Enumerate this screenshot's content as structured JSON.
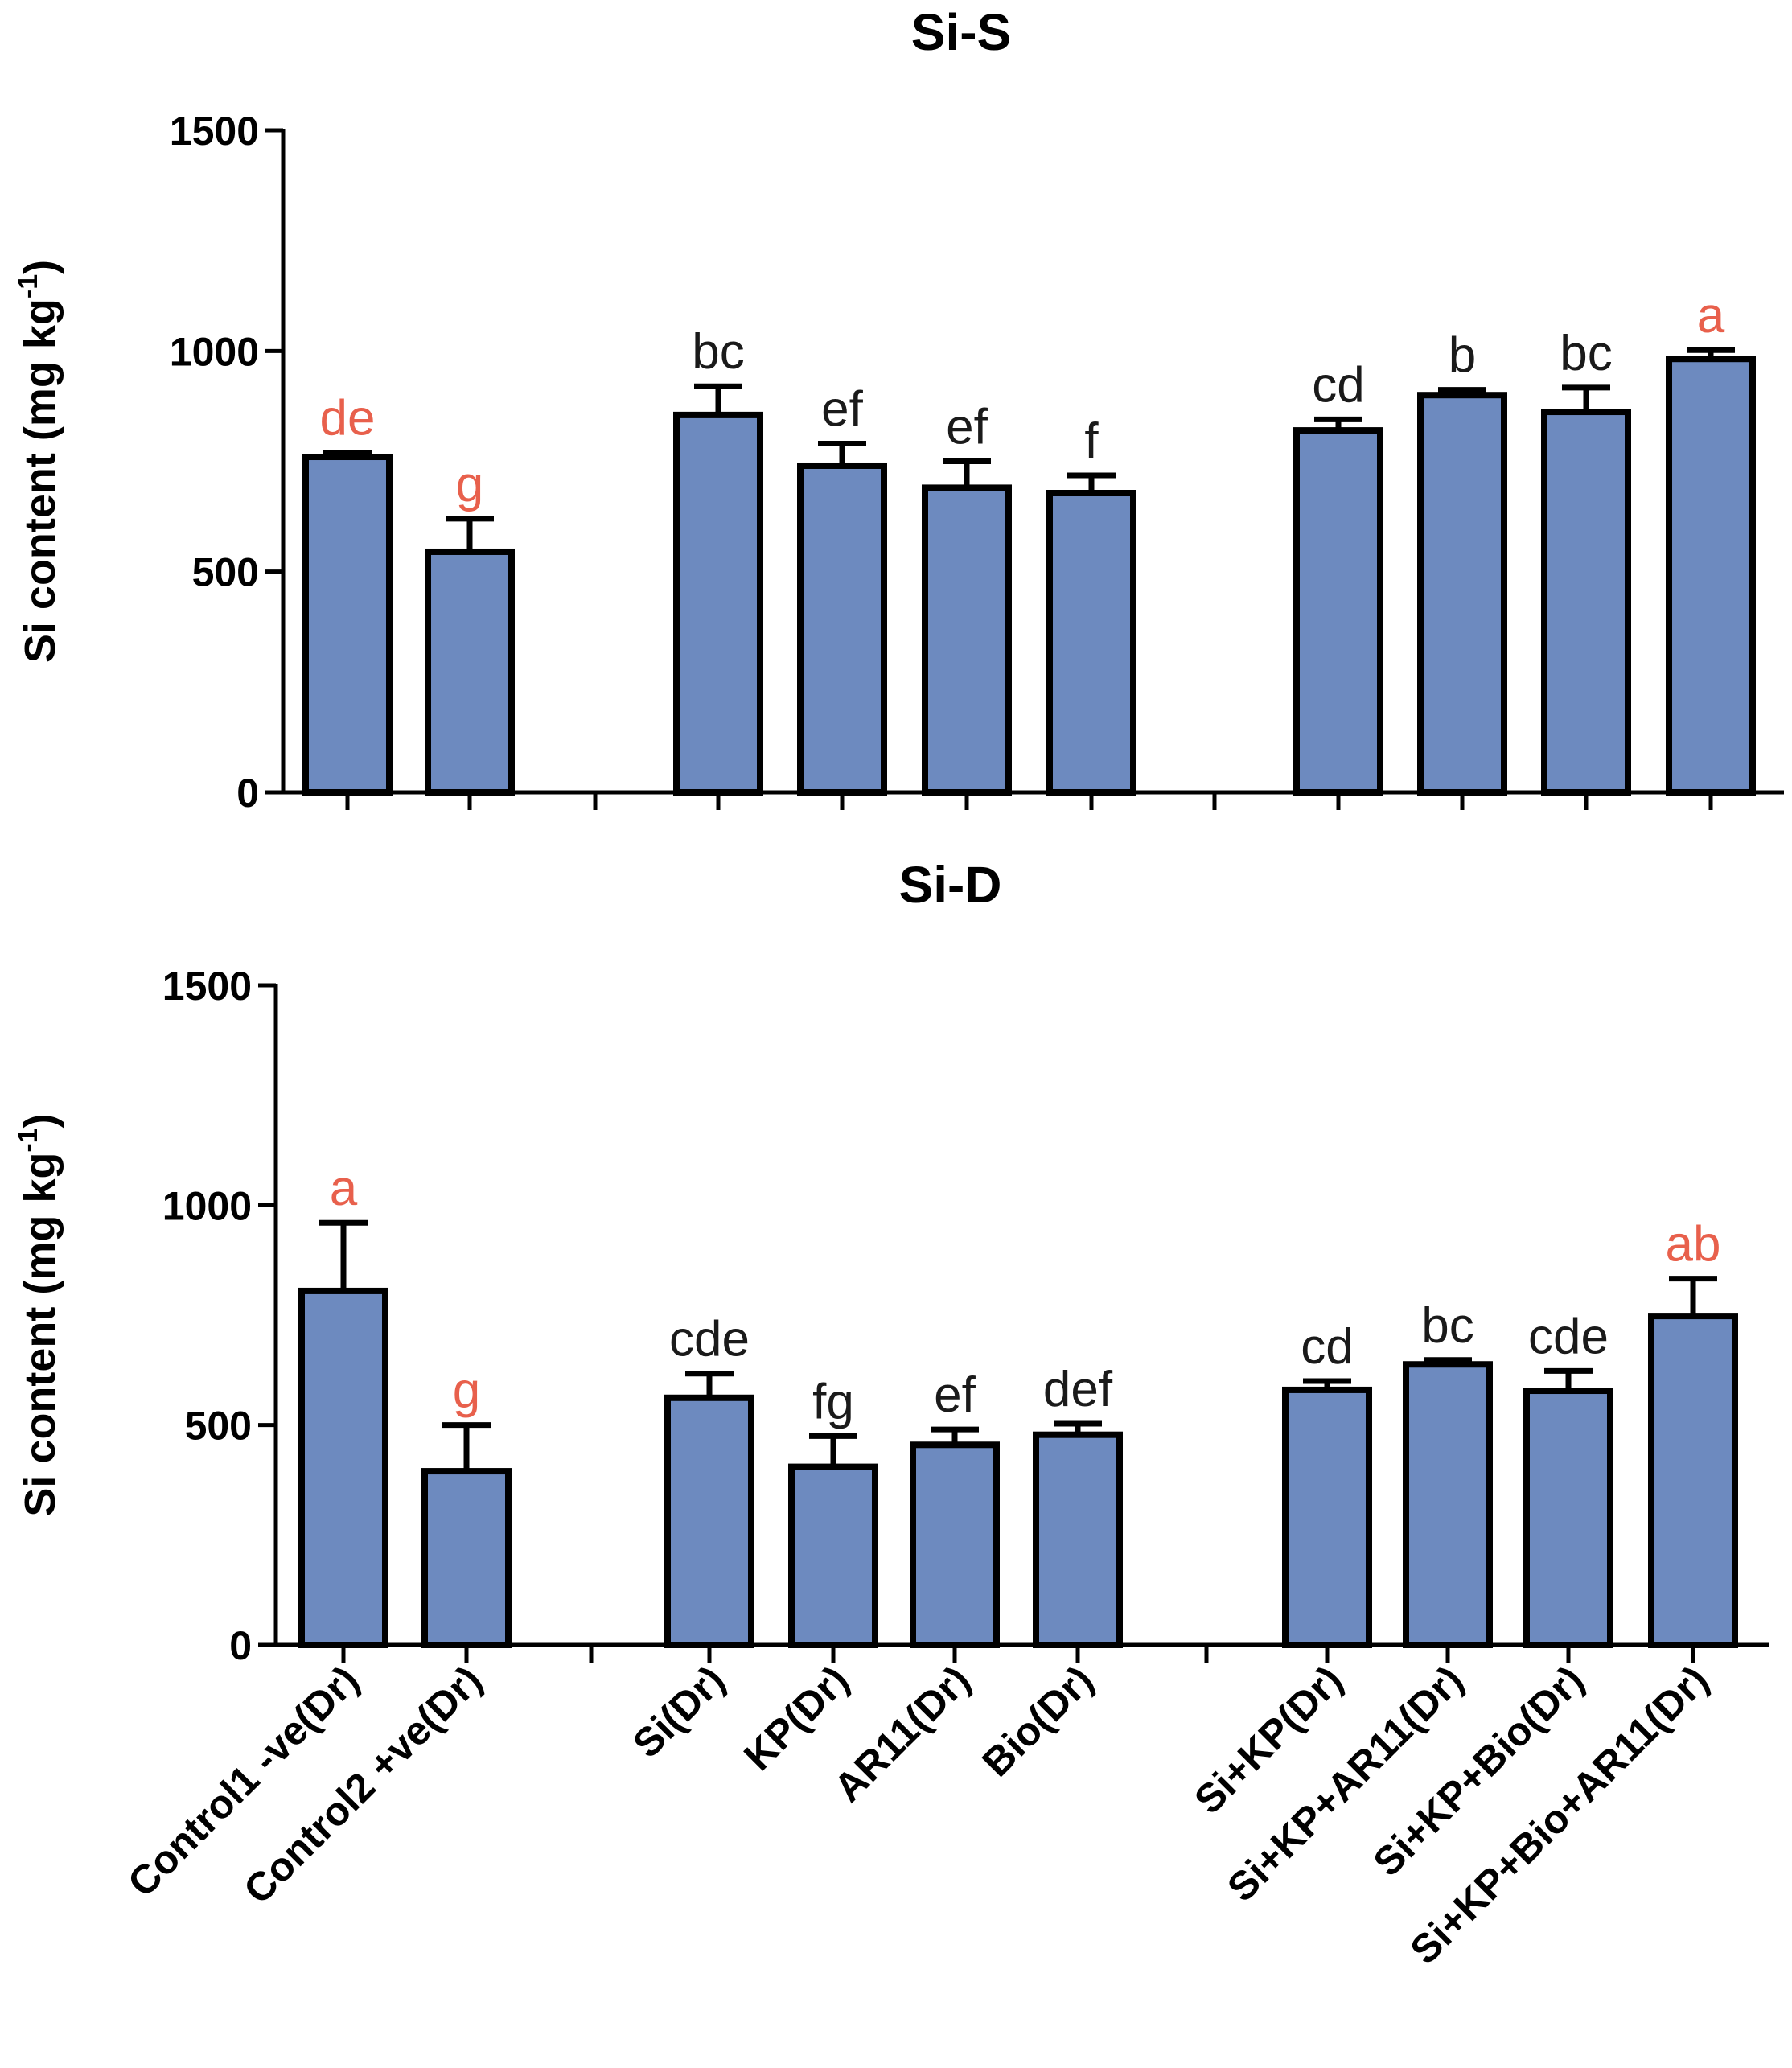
{
  "colors": {
    "bar_fill": "#6d8abf",
    "highlight_label": "#e8604c",
    "default_label": "#1a1a1a"
  },
  "chart_data": [
    {
      "type": "bar",
      "title": "Si-S",
      "ylabel": "Si content (mg kg",
      "ylabel_sup": "-1",
      "ylabel_close": ")",
      "ylim": [
        0,
        1500
      ],
      "yticks": [
        0,
        500,
        1000,
        1500
      ],
      "categories": [
        "Control1 -ve(Dr)",
        "Control2 +ve(Dr)",
        "Si(Dr)",
        "KP(Dr)",
        "AR11(Dr)",
        "Bio(Dr)",
        "Si+KP(Dr)",
        "Si+KP+AR11(Dr)",
        "Si+KP+Bio(Dr)",
        "Si+KP+Bio+AR11(Dr)"
      ],
      "groups": [
        [
          0,
          1
        ],
        [
          2,
          3,
          4,
          5
        ],
        [
          6,
          7,
          8,
          9
        ]
      ],
      "values": [
        760,
        545,
        855,
        740,
        690,
        678,
        820,
        900,
        862,
        982
      ],
      "errors": [
        10,
        75,
        65,
        50,
        60,
        40,
        25,
        12,
        55,
        20
      ],
      "significance": [
        "de",
        "g",
        "bc",
        "ef",
        "ef",
        "f",
        "cd",
        "b",
        "bc",
        "a"
      ],
      "highlighted": [
        true,
        true,
        false,
        false,
        false,
        false,
        false,
        false,
        false,
        true
      ]
    },
    {
      "type": "bar",
      "title": "Si-D",
      "ylabel": "Si content (mg kg",
      "ylabel_sup": "-1",
      "ylabel_close": ")",
      "ylim": [
        0,
        1500
      ],
      "yticks": [
        0,
        500,
        1000,
        1500
      ],
      "categories": [
        "Control1 -ve(Dr)",
        "Control2 +ve(Dr)",
        "Si(Dr)",
        "KP(Dr)",
        "AR11(Dr)",
        "Bio(Dr)",
        "Si+KP(Dr)",
        "Si+KP+AR11(Dr)",
        "Si+KP+Bio(Dr)",
        "Si+KP+Bio+AR11(Dr)"
      ],
      "groups": [
        [
          0,
          1
        ],
        [
          2,
          3,
          4,
          5
        ],
        [
          6,
          7,
          8,
          9
        ]
      ],
      "values": [
        805,
        395,
        562,
        405,
        455,
        478,
        580,
        638,
        578,
        748
      ],
      "errors": [
        155,
        105,
        55,
        70,
        35,
        25,
        20,
        10,
        45,
        85
      ],
      "significance": [
        "a",
        "g",
        "cde",
        "fg",
        "ef",
        "def",
        "cd",
        "bc",
        "cde",
        "ab"
      ],
      "highlighted": [
        true,
        true,
        false,
        false,
        false,
        false,
        false,
        false,
        false,
        true
      ]
    }
  ]
}
